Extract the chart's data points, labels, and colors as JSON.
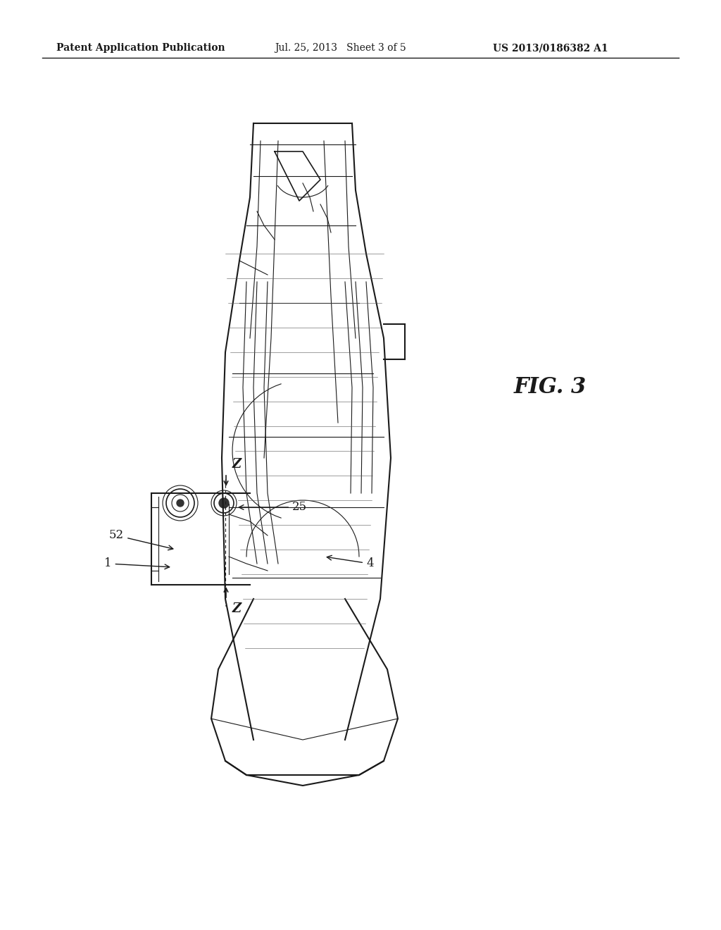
{
  "background_color": "#ffffff",
  "header_left": "Patent Application Publication",
  "header_mid": "Jul. 25, 2013   Sheet 3 of 5",
  "header_right": "US 2013/0186382 A1",
  "fig_label": "FIG. 3",
  "ref_labels": [
    "1",
    "4",
    "25",
    "52",
    "Z",
    "Z"
  ],
  "header_fontsize": 10,
  "fig_label_fontsize": 22
}
